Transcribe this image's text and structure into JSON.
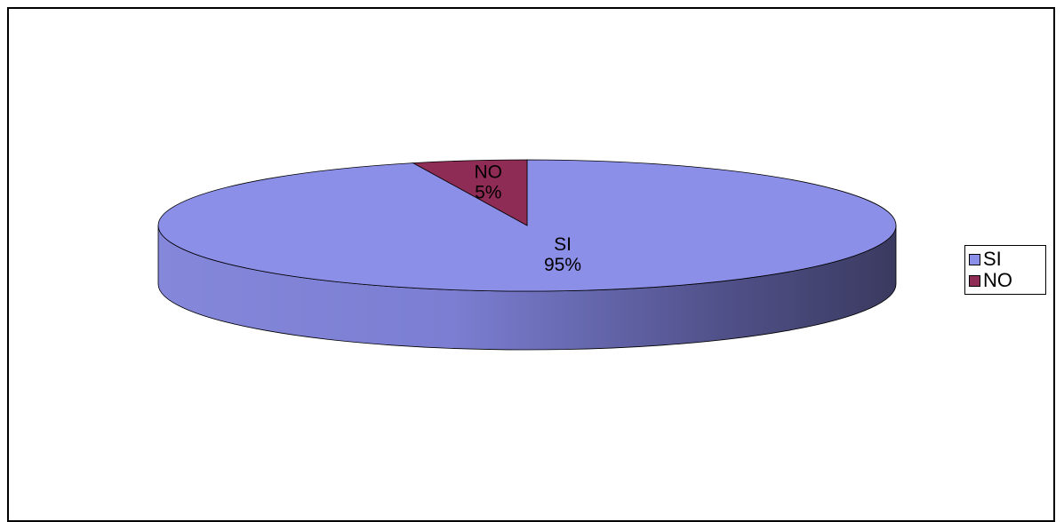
{
  "chart_data": {
    "type": "pie",
    "style": "3d",
    "title": "",
    "categories": [
      "SI",
      "NO"
    ],
    "values": [
      95,
      5
    ],
    "value_labels": [
      "95%",
      "5%"
    ],
    "colors": [
      "#8c8fe8",
      "#8e2c55"
    ],
    "start_angle_deg": 0,
    "legend": {
      "placement": "right",
      "entries": [
        "SI",
        "NO"
      ]
    }
  }
}
